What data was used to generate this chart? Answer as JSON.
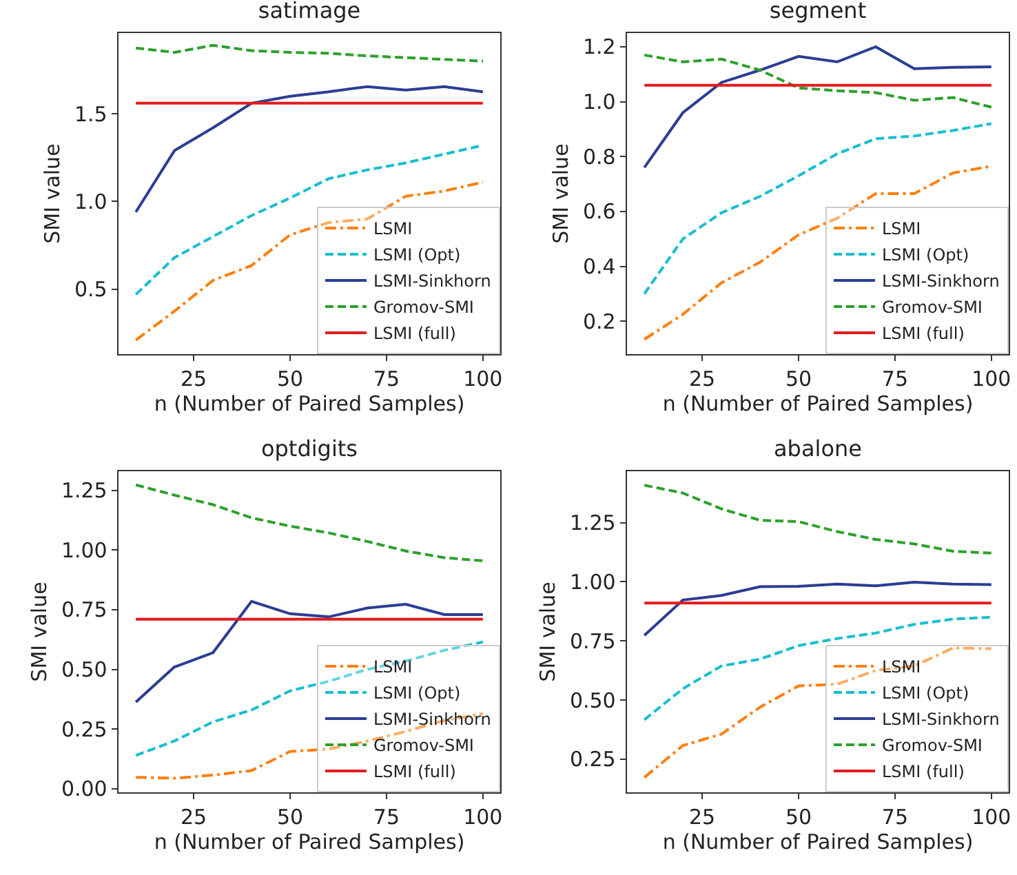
{
  "chart_data": [
    {
      "type": "line",
      "title": "satimage",
      "xlabel": "n (Number of Paired Samples)",
      "ylabel": "SMI value",
      "x": [
        10,
        20,
        30,
        40,
        50,
        60,
        70,
        80,
        90,
        100
      ],
      "xlim": [
        5.5,
        104.5
      ],
      "xticks": [
        25,
        50,
        75,
        100
      ],
      "ylim": [
        0.13,
        1.96
      ],
      "yticks": [
        {
          "value": 0.5,
          "label": "0.5"
        },
        {
          "value": 1,
          "label": "1.0"
        },
        {
          "value": 1.5,
          "label": "1.5"
        }
      ],
      "grid": false,
      "legend": "bottom right",
      "marker": "none",
      "series": [
        {
          "name": "LSMI",
          "color": "#ff7f0e",
          "line_style": "dashdot",
          "values": [
            0.21,
            0.375,
            0.55,
            0.635,
            0.81,
            0.88,
            0.9,
            1.03,
            1.06,
            1.11
          ]
        },
        {
          "name": "LSMI (Opt)",
          "color": "#17becf",
          "line_style": "dashed",
          "values": [
            0.47,
            0.68,
            0.8,
            0.92,
            1.02,
            1.13,
            1.18,
            1.22,
            1.27,
            1.32
          ]
        },
        {
          "name": "LSMI-Sinkhorn",
          "color": "#2b3d94",
          "line_style": "solid",
          "values": [
            0.94,
            1.29,
            1.42,
            1.56,
            1.6,
            1.625,
            1.655,
            1.635,
            1.655,
            1.625
          ]
        },
        {
          "name": "Gromov-SMI",
          "color": "#2ca02c",
          "line_style": "dashed",
          "values": [
            1.875,
            1.85,
            1.89,
            1.86,
            1.85,
            1.845,
            1.83,
            1.82,
            1.81,
            1.8
          ]
        },
        {
          "name": "LSMI (full)",
          "color": "#e41a1c",
          "line_style": "solid",
          "values": [
            1.56,
            1.56,
            1.56,
            1.56,
            1.56,
            1.56,
            1.56,
            1.56,
            1.56,
            1.56
          ]
        }
      ]
    },
    {
      "type": "line",
      "title": "segment",
      "xlabel": "n (Number of Paired Samples)",
      "ylabel": "SMI value",
      "x": [
        10,
        20,
        30,
        40,
        50,
        60,
        70,
        80,
        90,
        100
      ],
      "xlim": [
        5.5,
        104.5
      ],
      "xticks": [
        25,
        50,
        75,
        100
      ],
      "ylim": [
        0.08,
        1.25
      ],
      "yticks": [
        0.2,
        0.4,
        0.6,
        0.8,
        {
          "value": 1,
          "label": "1.0"
        },
        1.2
      ],
      "grid": false,
      "legend": "bottom right",
      "marker": "none",
      "series": [
        {
          "name": "LSMI",
          "color": "#ff7f0e",
          "line_style": "dashdot",
          "values": [
            0.134,
            0.225,
            0.34,
            0.415,
            0.515,
            0.575,
            0.665,
            0.665,
            0.74,
            0.765
          ]
        },
        {
          "name": "LSMI (Opt)",
          "color": "#17becf",
          "line_style": "dashed",
          "values": [
            0.3,
            0.5,
            0.595,
            0.655,
            0.73,
            0.81,
            0.865,
            0.875,
            0.895,
            0.92
          ]
        },
        {
          "name": "LSMI-Sinkhorn",
          "color": "#2b3d94",
          "line_style": "solid",
          "values": [
            0.76,
            0.96,
            1.07,
            1.115,
            1.165,
            1.145,
            1.2,
            1.12,
            1.125,
            1.127
          ]
        },
        {
          "name": "Gromov-SMI",
          "color": "#2ca02c",
          "line_style": "dashed",
          "values": [
            1.17,
            1.145,
            1.155,
            1.115,
            1.05,
            1.04,
            1.033,
            1.005,
            1.015,
            0.98
          ]
        },
        {
          "name": "LSMI (full)",
          "color": "#e41a1c",
          "line_style": "solid",
          "values": [
            1.06,
            1.06,
            1.06,
            1.06,
            1.06,
            1.06,
            1.06,
            1.06,
            1.06,
            1.06
          ]
        }
      ]
    },
    {
      "type": "line",
      "title": "optdigits",
      "xlabel": "n (Number of Paired Samples)",
      "ylabel": "SMI value",
      "x": [
        10,
        20,
        30,
        40,
        50,
        60,
        70,
        80,
        90,
        100
      ],
      "xlim": [
        5.5,
        104.5
      ],
      "xticks": [
        25,
        50,
        75,
        100
      ],
      "ylim": [
        -0.015,
        1.33
      ],
      "yticks": [
        {
          "value": 0,
          "label": "0.00"
        },
        {
          "value": 0.25,
          "label": "0.25"
        },
        {
          "value": 0.5,
          "label": "0.50"
        },
        {
          "value": 0.75,
          "label": "0.75"
        },
        {
          "value": 1,
          "label": "1.00"
        },
        {
          "value": 1.25,
          "label": "1.25"
        }
      ],
      "grid": false,
      "legend": "bottom right",
      "marker": "none",
      "series": [
        {
          "name": "LSMI",
          "color": "#ff7f0e",
          "line_style": "dashdot",
          "values": [
            0.048,
            0.044,
            0.057,
            0.076,
            0.156,
            0.166,
            0.2,
            0.24,
            0.286,
            0.315
          ]
        },
        {
          "name": "LSMI (Opt)",
          "color": "#17becf",
          "line_style": "dashed",
          "values": [
            0.14,
            0.2,
            0.28,
            0.33,
            0.41,
            0.45,
            0.5,
            0.535,
            0.58,
            0.615
          ]
        },
        {
          "name": "LSMI-Sinkhorn",
          "color": "#2b3d94",
          "line_style": "solid",
          "values": [
            0.363,
            0.51,
            0.57,
            0.785,
            0.733,
            0.72,
            0.757,
            0.773,
            0.73,
            0.73
          ]
        },
        {
          "name": "Gromov-SMI",
          "color": "#2ca02c",
          "line_style": "dashed",
          "values": [
            1.273,
            1.23,
            1.19,
            1.135,
            1.1,
            1.072,
            1.036,
            0.996,
            0.968,
            0.955
          ]
        },
        {
          "name": "LSMI (full)",
          "color": "#e41a1c",
          "line_style": "solid",
          "values": [
            0.71,
            0.71,
            0.71,
            0.71,
            0.71,
            0.71,
            0.71,
            0.71,
            0.71,
            0.71
          ]
        }
      ]
    },
    {
      "type": "line",
      "title": "abalone",
      "xlabel": "n (Number of Paired Samples)",
      "ylabel": "SMI value",
      "x": [
        10,
        20,
        30,
        40,
        50,
        60,
        70,
        80,
        90,
        100
      ],
      "xlim": [
        5.5,
        104.5
      ],
      "xticks": [
        25,
        50,
        75,
        100
      ],
      "ylim": [
        0.11,
        1.467
      ],
      "yticks": [
        {
          "value": 0.25,
          "label": "0.25"
        },
        {
          "value": 0.5,
          "label": "0.50"
        },
        {
          "value": 0.75,
          "label": "0.75"
        },
        {
          "value": 1,
          "label": "1.00"
        },
        {
          "value": 1.25,
          "label": "1.25"
        }
      ],
      "grid": false,
      "legend": "bottom right",
      "marker": "none",
      "series": [
        {
          "name": "LSMI",
          "color": "#ff7f0e",
          "line_style": "dashdot",
          "values": [
            0.173,
            0.308,
            0.356,
            0.47,
            0.56,
            0.567,
            0.625,
            0.644,
            0.72,
            0.717
          ]
        },
        {
          "name": "LSMI (Opt)",
          "color": "#17becf",
          "line_style": "dashed",
          "values": [
            0.417,
            0.548,
            0.644,
            0.673,
            0.73,
            0.76,
            0.783,
            0.82,
            0.842,
            0.85
          ]
        },
        {
          "name": "LSMI-Sinkhorn",
          "color": "#2b3d94",
          "line_style": "solid",
          "values": [
            0.773,
            0.923,
            0.942,
            0.979,
            0.981,
            0.99,
            0.983,
            0.998,
            0.99,
            0.988
          ]
        },
        {
          "name": "Gromov-SMI",
          "color": "#2ca02c",
          "line_style": "dashed",
          "values": [
            1.408,
            1.375,
            1.308,
            1.26,
            1.254,
            1.212,
            1.179,
            1.16,
            1.129,
            1.121
          ]
        },
        {
          "name": "LSMI (full)",
          "color": "#e41a1c",
          "line_style": "solid",
          "values": [
            0.91,
            0.91,
            0.91,
            0.91,
            0.91,
            0.91,
            0.91,
            0.91,
            0.91,
            0.91
          ]
        }
      ]
    }
  ]
}
